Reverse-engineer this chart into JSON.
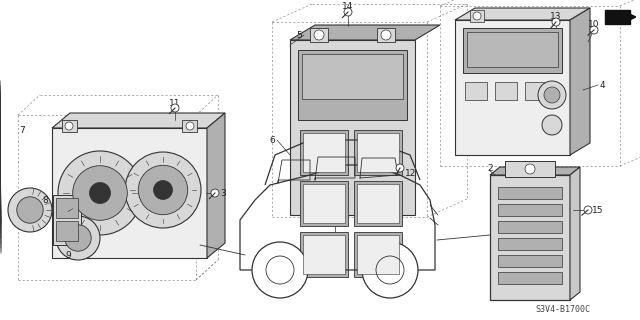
{
  "bg_color": "#ffffff",
  "line_color": "#333333",
  "diagram_code": "S3V4-B1700C",
  "dashed_color": "#888888",
  "gray_fill": "#d8d8d8",
  "dark_fill": "#b0b0b0",
  "light_fill": "#eeeeee"
}
